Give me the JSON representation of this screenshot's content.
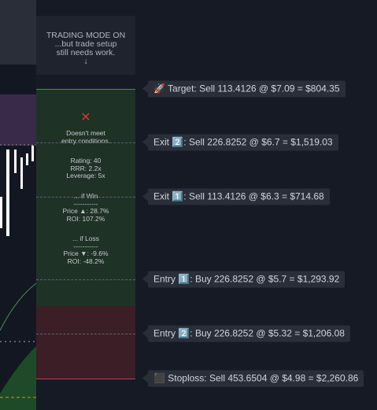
{
  "header": {
    "lines": [
      "TRADING MODE ON",
      "...but  trade setup",
      "still needs work.",
      "↓"
    ]
  },
  "panel": {
    "status_icon": "✕",
    "status": [
      "Doesn't meet",
      "entry conditions."
    ],
    "stats": [
      "Rating: 40",
      "RRR: 2.2x",
      "Leverage: 5x"
    ],
    "win": [
      "... if Win",
      "-----------",
      "Price ▲: 28.7%",
      "ROI: 107.2%"
    ],
    "loss": [
      "... if Loss",
      "-----------",
      "Price ▼: -9.6%",
      "ROI: -48.2%"
    ]
  },
  "levels": [
    {
      "label": "🚀 Target: Sell 113.4126 @ $7.09 = $804.35"
    },
    {
      "label": "Exit 2️⃣: Sell 226.8252 @ $6.7 = $1,519.03"
    },
    {
      "label": "Exit 1️⃣: Sell 113.4126 @ $6.3 = $714.68"
    },
    {
      "label": "Entry 1️⃣: Buy 226.8252 @ $5.7 = $1,293.92"
    },
    {
      "label": "Entry 2️⃣: Buy 226.8252 @ $5.32 = $1,206.08"
    },
    {
      "label": "⬛ Stoploss: Sell 453.6504 @ $4.98 = $2,260.86"
    }
  ]
}
